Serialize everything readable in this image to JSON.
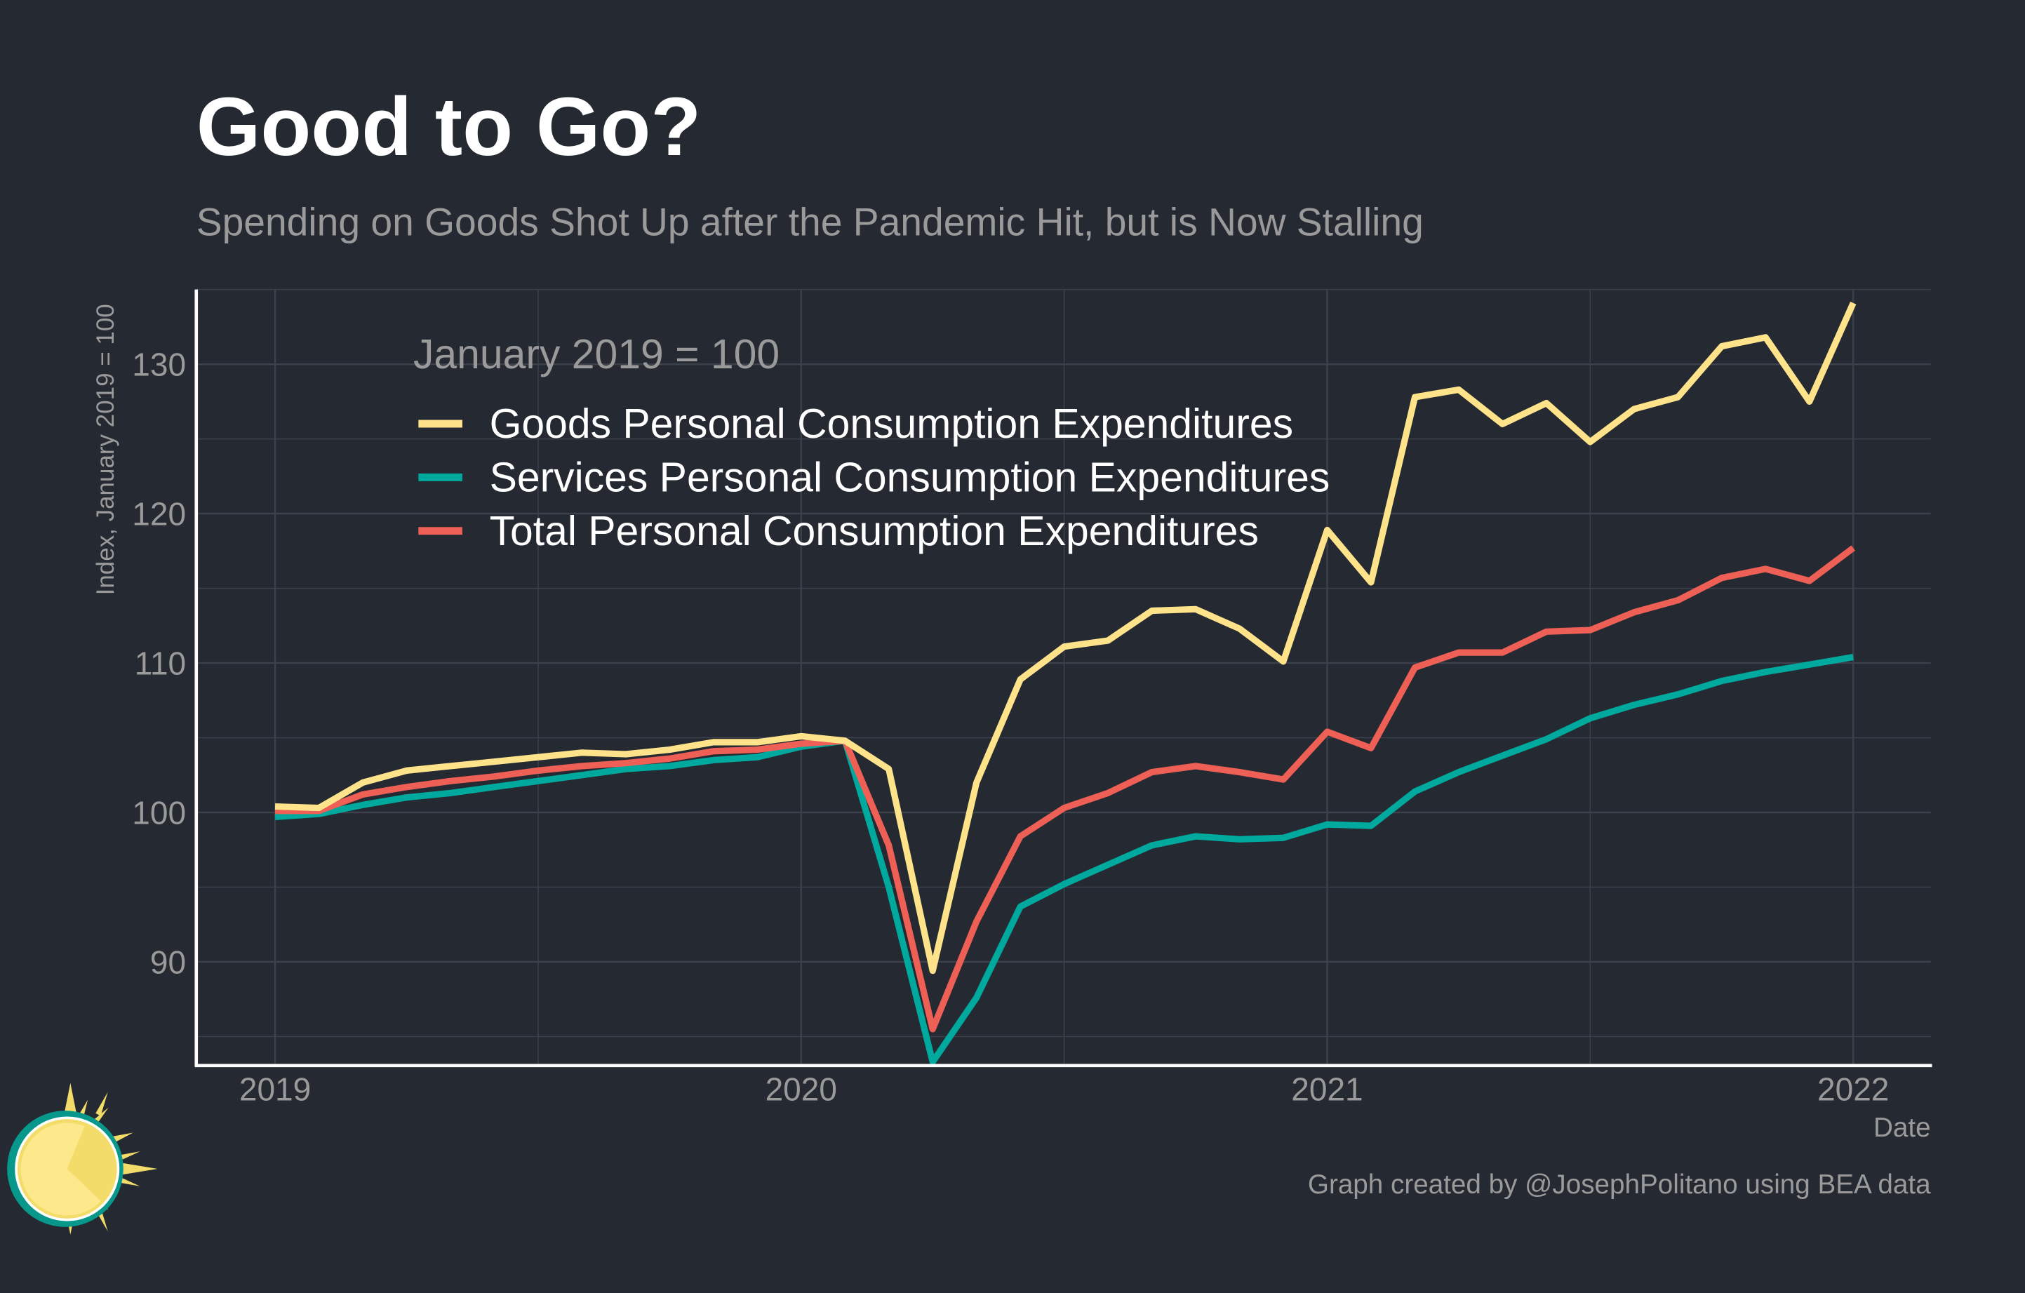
{
  "chart_data": {
    "type": "line",
    "title": "Good to Go?",
    "subtitle": "Spending on Goods Shot Up after the Pandemic Hit, but is Now Stalling",
    "xlabel": "Date",
    "ylabel": "Index, January 2019 = 100",
    "legend_title": "January 2019 = 100",
    "legend_position": "top-left",
    "caption": "Graph created by @JosephPolitano using BEA data",
    "grid": true,
    "ylim": [
      83.5,
      135
    ],
    "xlim": [
      "2018-10",
      "2022-03"
    ],
    "x_ticks": [
      "2019",
      "2020",
      "2021",
      "2022"
    ],
    "y_ticks": [
      90,
      100,
      110,
      120,
      130
    ],
    "x_start": "2019-01",
    "x_frequency": "monthly",
    "x": [
      "2019-01",
      "2019-02",
      "2019-03",
      "2019-04",
      "2019-05",
      "2019-06",
      "2019-07",
      "2019-08",
      "2019-09",
      "2019-10",
      "2019-11",
      "2019-12",
      "2020-01",
      "2020-02",
      "2020-03",
      "2020-04",
      "2020-05",
      "2020-06",
      "2020-07",
      "2020-08",
      "2020-09",
      "2020-10",
      "2020-11",
      "2020-12",
      "2021-01",
      "2021-02",
      "2021-03",
      "2021-04",
      "2021-05",
      "2021-06",
      "2021-07",
      "2021-08",
      "2021-09",
      "2021-10",
      "2021-11",
      "2021-12",
      "2022-01"
    ],
    "series": [
      {
        "name": "Goods Personal Consumption Expenditures",
        "color": "#FEE38B",
        "values": [
          100.4,
          100.3,
          102.0,
          102.8,
          103.1,
          103.4,
          103.7,
          104.0,
          103.9,
          104.2,
          104.7,
          104.7,
          105.1,
          104.8,
          102.9,
          89.4,
          102.0,
          108.9,
          111.1,
          111.5,
          113.5,
          113.6,
          112.3,
          110.1,
          118.9,
          115.4,
          127.8,
          128.3,
          126.0,
          127.4,
          124.8,
          127.0,
          127.8,
          131.2,
          131.8,
          127.5,
          134.1
        ]
      },
      {
        "name": "Services Personal Consumption Expenditures",
        "color": "#00A99D",
        "values": [
          99.7,
          99.9,
          100.5,
          101.0,
          101.3,
          101.7,
          102.1,
          102.5,
          102.9,
          103.1,
          103.5,
          103.7,
          104.4,
          104.8,
          95.0,
          83.3,
          87.6,
          93.7,
          95.2,
          96.5,
          97.8,
          98.4,
          98.2,
          98.3,
          99.2,
          99.1,
          101.4,
          102.7,
          103.8,
          104.9,
          106.3,
          107.2,
          107.9,
          108.8,
          109.4,
          109.9,
          110.4
        ]
      },
      {
        "name": "Total Personal Consumption Expenditures",
        "color": "#EE6055",
        "values": [
          100.1,
          100.1,
          101.2,
          101.7,
          102.1,
          102.4,
          102.8,
          103.1,
          103.3,
          103.6,
          104.1,
          104.2,
          104.6,
          104.8,
          97.8,
          85.5,
          92.7,
          98.4,
          100.3,
          101.3,
          102.7,
          103.1,
          102.7,
          102.2,
          105.4,
          104.3,
          109.7,
          110.7,
          110.7,
          112.1,
          112.2,
          113.4,
          114.2,
          115.7,
          116.3,
          115.5,
          117.7
        ]
      }
    ]
  },
  "colors": {
    "background": "#252932",
    "grid": "#3c414b",
    "axis": "#ffffff",
    "muted_text": "#9a9a9a"
  },
  "logo": {
    "icon": "sun-icon"
  }
}
